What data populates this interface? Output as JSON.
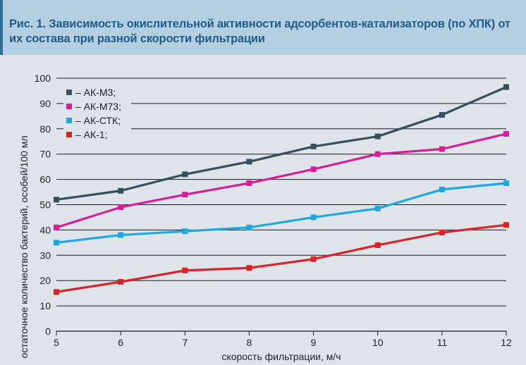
{
  "title": "Рис. 1. Зависимость окислительной активности адсорбентов-катализаторов (по ХПК) от их состава при разной скорости фильтрации",
  "colors": {
    "title_bg": "#b5cfe2",
    "title_text": "#1f5b86",
    "background": "#dfe3ea",
    "grid": "#1a1a1a"
  },
  "chart_data": {
    "type": "line",
    "title": "Рис. 1. Зависимость окислительной активности адсорбентов-катализаторов (по ХПК) от их состава при разной скорости фильтрации",
    "xlabel": "скорость фильтрации, м/ч",
    "ylabel": "остаточное количество бактерий, особей/100 мл",
    "x": [
      5,
      6,
      7,
      8,
      9,
      10,
      11,
      12
    ],
    "x_ticks": [
      "5",
      "6",
      "7",
      "8",
      "9",
      "10",
      "11",
      "12"
    ],
    "ylim": [
      0,
      100
    ],
    "y_ticks": [
      "0",
      "10",
      "20",
      "30",
      "40",
      "50",
      "60",
      "70",
      "80",
      "90",
      "100"
    ],
    "grid": "horizontal",
    "legend_position": "top-left",
    "series": [
      {
        "name": "– АК-М3;",
        "color": "#34505f",
        "values": [
          52,
          55.5,
          62,
          67,
          73,
          77,
          85.5,
          96.5
        ]
      },
      {
        "name": "– АК-М73;",
        "color": "#d41f9a",
        "values": [
          41,
          49,
          54,
          58.5,
          64,
          70,
          72,
          78
        ]
      },
      {
        "name": "– АК-СТК;",
        "color": "#1ea8e0",
        "values": [
          35,
          38,
          39.5,
          41,
          45,
          48.5,
          56,
          58.5
        ]
      },
      {
        "name": "– АК-1;",
        "color": "#d8232a",
        "values": [
          15.5,
          19.5,
          24,
          25,
          28.5,
          34,
          39,
          42
        ]
      }
    ]
  }
}
